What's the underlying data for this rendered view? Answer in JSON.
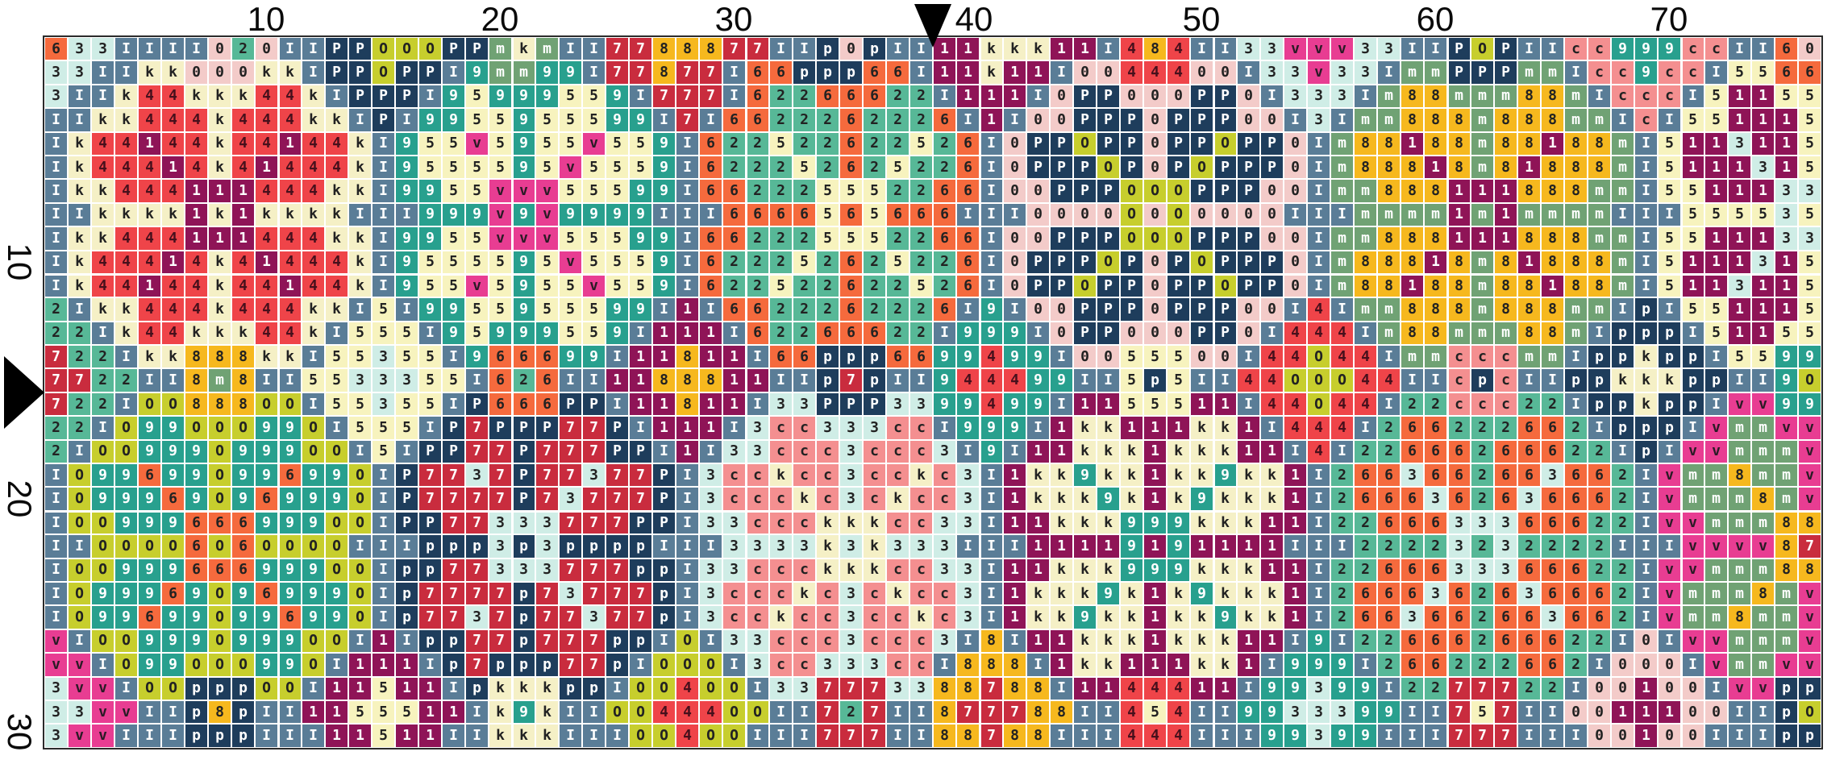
{
  "app": {
    "title": "cross-stitch pattern chart"
  },
  "axis": {
    "top_labels": [
      "10",
      "20",
      "30",
      "40",
      "50",
      "60",
      "70"
    ],
    "left_labels": [
      "10",
      "20",
      "30"
    ]
  },
  "markers": {
    "top_center": "down-triangle-icon",
    "left_center": "right-triangle-icon"
  },
  "grid": {
    "columns": 76,
    "rows": 30,
    "palette": {
      "I": {
        "bg": "#5A7D97",
        "fg": "#FFFFFF"
      },
      "k": {
        "bg": "#F5F0C6",
        "fg": "#222222"
      },
      "4": {
        "bg": "#EF4449",
        "fg": "#47101C"
      },
      "1": {
        "bg": "#8F1457",
        "fg": "#FFFFFF"
      },
      "9": {
        "bg": "#28A08E",
        "fg": "#FFFFFF"
      },
      "5": {
        "bg": "#F7F3BE",
        "fg": "#222222"
      },
      "v": {
        "bg": "#E83D92",
        "fg": "#2B1B26"
      },
      "2": {
        "bg": "#57B897",
        "fg": "#222222"
      },
      "6": {
        "bg": "#F56A3D",
        "fg": "#222222"
      },
      "7": {
        "bg": "#C92C3E",
        "fg": "#FFFFFF"
      },
      "8": {
        "bg": "#F6B81E",
        "fg": "#222222"
      },
      "m": {
        "bg": "#70A274",
        "fg": "#FFFFFF"
      },
      "3": {
        "bg": "#CFEDE6",
        "fg": "#222222"
      },
      "c": {
        "bg": "#F48F90",
        "fg": "#222222"
      },
      "0": {
        "bg": "#F3CBC9",
        "fg": "#222222"
      },
      "O": {
        "bg": "#C7CE2D",
        "fg": "#222222"
      },
      "P": {
        "bg": "#1E3D5C",
        "fg": "#FFFFFF"
      },
      "p": {
        "bg": "#1E3D5C",
        "fg": "#FFFFFF"
      }
    },
    "rows_data": [
      "633IIII020IIPPOOOPPmkmII7788877IIp0pII11kkk11I484II33vvv33IIPOPIIcc999ccII60",
      "33IIkk000kkIPPOPPI9mm99I77877I66ppp66I11k11I0044400I33v33ImmPPPmmIcc9ccI5566",
      "3IIk44kkk44kIPPPI95999559I777I62266622I111I0PP000PP0I333Im88mmm88mIcccI51155",
      "IIkk444k444kkIPI9955955599I7I6622262226I1I00PPP0PPP00I3Imm888m888mmIcI551115",
      "Ik44144k44144kI955v5955v559I622522622526I0PPOPP0PPOPP0Im88188m88188mI5113115",
      "Ik44414k41444kI9555595v5559I622252625226I0PPPOP0POPPP0Im88818m81888mI5111315",
      "Ikk444111444kkI9955vvv55599I662225552266I00PPPOOOPPP00Imm888111888mmI5511133",
      "IIkkkk1k1kkkkIII999v9v9999III6666565666III0000O0O0000IIImmmm1m1mmmmIII555535",
      "Ikk444111444kkI9955vvv55599I662225552266I00PPPOOOPPP00Imm888111888mmI5511133",
      "Ik44414k41444kI9555595v5559I622252625226I0PPPOP0POPPP0Im88818m81888mI5111315",
      "Ik44144k44144kI955v5955v559I622522622526I0PPOPP0PPOPP0Im88188m88188mI5113115",
      "2Ikk444k444kkI5I9955955599I1I6622262226I9I00PPP0PPP00I4Imm888m888mmIpI551115",
      "22Ik44kkk44kI555I95999559I111I62266622I999I0PP000PP0I444Im88mmm88mIpppI51155",
      "722Ikk888kkI55355I966699I11811I66ppp6699499I0055500I44O44ImmcccmmIppkppI5599",
      "7722II8m8II5533355I626II1188811IIp7pII944499II5p5II44OOO44IIcpcIIppkkkppII9O",
      "722IOO888OOI55355IP666PPI11811I33PPP3399499I1155511I44O44I22ccc22IppkppIvv99",
      "22IO99OOO99OI555IP7PPP77PI111I3cc333ccI999I1kk111kk1I444I266222662IpppIvmmvv",
      "2IOO999O999OOI5IPP77P777PPI1I33ccc3ccc3I9I11kkk1kkk11I4I22666266622IpIvvmmmv",
      "IO99699O99699OIP7737P77377PI3cckcc3cckc3I1kk9kk1kk9kk1I2663662663662Ivmm8mmv",
      "IO99969O96999OIP7777P73777PI3ccckc3ckcc3I1kkk9k1k9kkk1I2666362636662Ivmmm8mv",
      "IOO999666999OOIPP77333777PPI33ccckkkcc33I11kkk999kkk11I2266633366622Ivvmmm88",
      "IIOOOO6O6OOOOIIIppp3p3ppppIII3333k3k333III11119191111III22223232222IIIvvvv87",
      "IOO999666999OOIpp77333777ppI33ccckkkcc33I11kkk999kkk11I2266633366622Ivvmmm88",
      "IO99969O96999OIp7777p73777pI3ccckc3ckcc3I1kkk9k1k9kkk1I2666362636662Ivmmm8mv",
      "IO99699O99699OIp7737p77377pI3cckcc3cckc3I1kk9kk1kk9kk1I2663662663662Ivmm8mmv",
      "vIOO999O999OOI1Ipp77p777ppIOI33ccc3ccc3I8I11kkk1kkk11I9I22666266622I0Ivvmmmv",
      "vvIO99OOO99OI111Ip7ppp77pIOOOI3cc333ccI888I1kk111kk1I999I266222662I000Ivmmvv",
      "3vvIOOpppOOI11511IpkkkppIOO4OOI337773388788I1144411I99399I2277722I00100Ivvpp",
      "33vvIIp8pII1155511Ik9kIIOO444OOII727II877788II454II9933399II757II0011100IIpO",
      "3vvIIIpppIII11511IIkkkIIIOO4OOIII777II88788III444III99399III777III00100IIIpp"
    ]
  }
}
